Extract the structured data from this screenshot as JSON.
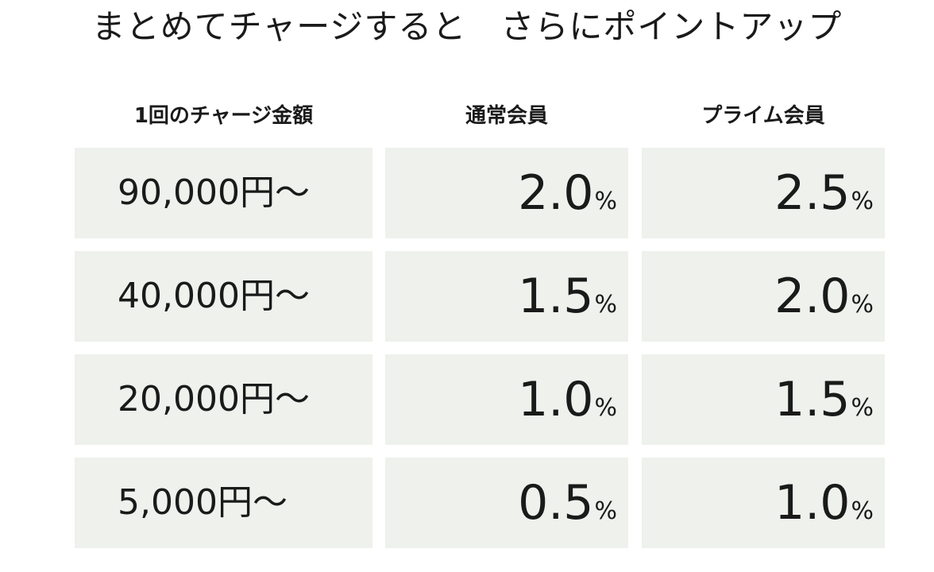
{
  "title": "まとめてチャージすると　さらにポイントアップ",
  "headers": {
    "amount": "1回のチャージ金額",
    "regular": "通常会員",
    "prime": "プライム会員"
  },
  "rows": [
    {
      "amount": "90,000円〜",
      "regular": "2.0",
      "prime": "2.5"
    },
    {
      "amount": "40,000円〜",
      "regular": "1.5",
      "prime": "2.0"
    },
    {
      "amount": "20,000円〜",
      "regular": "1.0",
      "prime": "1.5"
    },
    {
      "amount": "5,000円〜",
      "regular": "0.5",
      "prime": "1.0"
    }
  ],
  "percent_sign": "%",
  "colors": {
    "cell_background": "#eef1ec",
    "text": "#1a1a1a"
  }
}
